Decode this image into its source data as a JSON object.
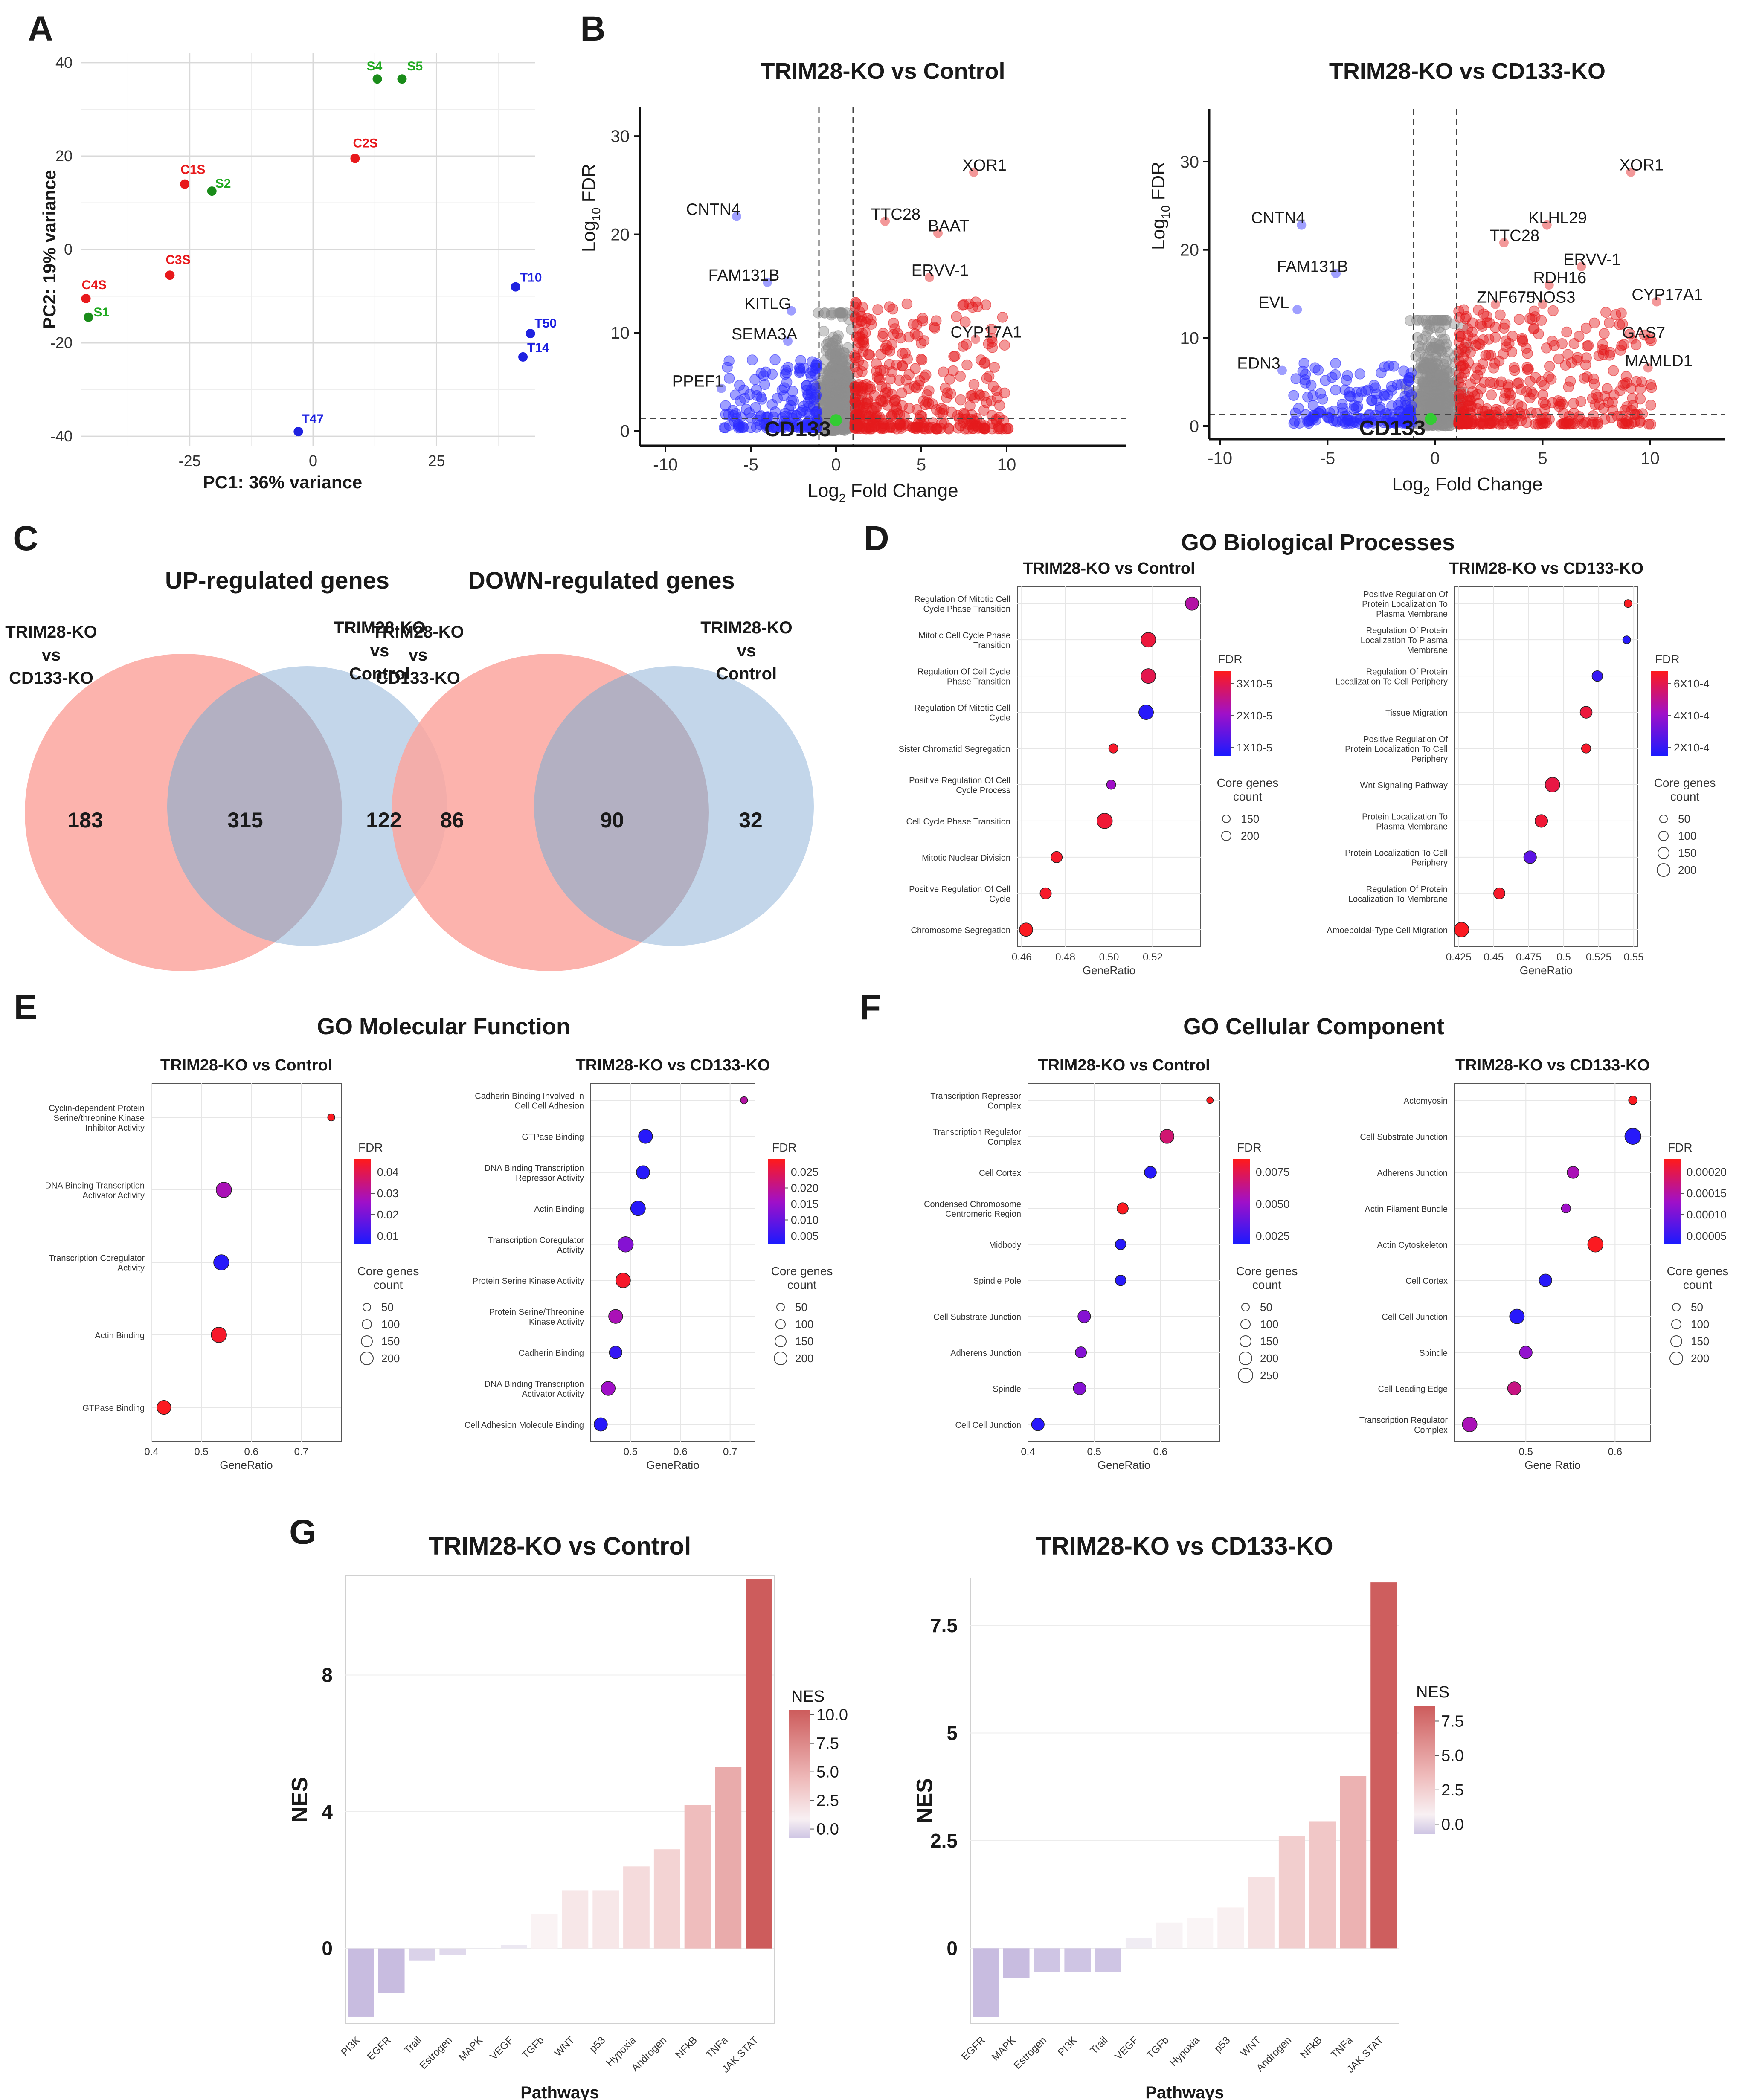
{
  "figure": {
    "panel_letters": [
      "A",
      "B",
      "C",
      "D",
      "E",
      "F",
      "G"
    ]
  },
  "chart_data": [
    {
      "id": "A",
      "type": "scatter",
      "title": "",
      "xlabel": "PC1: 36% variance",
      "ylabel": "PC2: 19% variance",
      "xlim": [
        -47,
        45
      ],
      "ylim": [
        -42,
        42
      ],
      "xticks": [
        -25,
        0,
        25
      ],
      "yticks": [
        -40,
        -20,
        0,
        20,
        40
      ],
      "colors": {
        "C": "#e8191c",
        "S": "#1a8c1a",
        "T": "#1f22e0"
      },
      "label_colors": {
        "C": "#e8191c",
        "S": "#22aa22",
        "T": "#1f22e0"
      },
      "points": [
        {
          "label": "S4",
          "x": 13,
          "y": 36.5,
          "group": "S"
        },
        {
          "label": "S5",
          "x": 18,
          "y": 36.5,
          "group": "S"
        },
        {
          "label": "C2S",
          "x": 8.5,
          "y": 19.5,
          "group": "C"
        },
        {
          "label": "C1S",
          "x": -26,
          "y": 14,
          "group": "C"
        },
        {
          "label": "S2",
          "x": -20.5,
          "y": 12.5,
          "group": "S"
        },
        {
          "label": "C3S",
          "x": -29,
          "y": -5.5,
          "group": "C"
        },
        {
          "label": "C4S",
          "x": -46,
          "y": -10.5,
          "group": "C"
        },
        {
          "label": "S1",
          "x": -45.5,
          "y": -14.5,
          "group": "S"
        },
        {
          "label": "T10",
          "x": 41,
          "y": -8,
          "group": "T"
        },
        {
          "label": "T50",
          "x": 44,
          "y": -18,
          "group": "T"
        },
        {
          "label": "T14",
          "x": 42.5,
          "y": -23,
          "group": "T"
        },
        {
          "label": "T47",
          "x": -3,
          "y": -39,
          "group": "T"
        }
      ]
    },
    {
      "id": "B1",
      "type": "scatter",
      "title": "TRIM28-KO vs Control",
      "xlabel": "Log2 Fold Change",
      "ylabel": "Log10 FDR",
      "xlim": [
        -11.5,
        17
      ],
      "ylim": [
        -1.5,
        33
      ],
      "xticks": [
        -10,
        -5,
        0,
        5,
        10
      ],
      "yticks": [
        0,
        10,
        20,
        30
      ],
      "vlines": [
        -1,
        1
      ],
      "hline": 1.3,
      "labels": [
        {
          "text": "XOR1",
          "x": 8.7,
          "y": 26.5
        },
        {
          "text": "CNTN4",
          "x": -7.2,
          "y": 22
        },
        {
          "text": "TTC28",
          "x": 3.5,
          "y": 21.5
        },
        {
          "text": "BAAT",
          "x": 6.6,
          "y": 20.3
        },
        {
          "text": "FAM131B",
          "x": -5.4,
          "y": 15.3
        },
        {
          "text": "ERVV-1",
          "x": 6.1,
          "y": 15.8
        },
        {
          "text": "KITLG",
          "x": -4,
          "y": 12.4
        },
        {
          "text": "SEMA3A",
          "x": -4.2,
          "y": 9.3
        },
        {
          "text": "CYP17A1",
          "x": 8.8,
          "y": 9.5
        },
        {
          "text": "PPEF1",
          "x": -8.1,
          "y": 4.5
        }
      ],
      "highlight": {
        "text": "CD133",
        "x": 0,
        "y": 1.1
      }
    },
    {
      "id": "B2",
      "type": "scatter",
      "title": "TRIM28-KO vs CD133-KO",
      "xlabel": "Log2 Fold Change",
      "ylabel": "Log10 FDR",
      "xlim": [
        -10.5,
        13.5
      ],
      "ylim": [
        -1.5,
        36
      ],
      "xticks": [
        -10,
        -5,
        0,
        5,
        10
      ],
      "yticks": [
        0,
        10,
        20,
        30
      ],
      "vlines": [
        -1,
        1
      ],
      "hline": 1.3,
      "labels": [
        {
          "text": "XOR1",
          "x": 9.6,
          "y": 29
        },
        {
          "text": "CNTN4",
          "x": -7.3,
          "y": 23
        },
        {
          "text": "KLHL29",
          "x": 5.7,
          "y": 23
        },
        {
          "text": "TTC28",
          "x": 3.7,
          "y": 21
        },
        {
          "text": "ERVV-1",
          "x": 7.3,
          "y": 18.3
        },
        {
          "text": "FAM131B",
          "x": -5.7,
          "y": 17.5
        },
        {
          "text": "RDH16",
          "x": 5.8,
          "y": 16.2
        },
        {
          "text": "ZNF675",
          "x": 3.3,
          "y": 14
        },
        {
          "text": "NOS3",
          "x": 5.5,
          "y": 14
        },
        {
          "text": "CYP17A1",
          "x": 10.8,
          "y": 14.3
        },
        {
          "text": "EVL",
          "x": -7.5,
          "y": 13.4
        },
        {
          "text": "GAS7",
          "x": 9.7,
          "y": 10
        },
        {
          "text": "EDN3",
          "x": -8.2,
          "y": 6.5
        },
        {
          "text": "MAMLD1",
          "x": 10.4,
          "y": 6.8
        }
      ],
      "highlight": {
        "text": "CD133",
        "x": -0.2,
        "y": 0.8
      }
    },
    {
      "id": "C1",
      "type": "venn",
      "title": "UP-regulated genes",
      "sets": [
        "TRIM28-KO\nvs\nCD133-KO",
        "TRIM28-KO\nvs\nControl"
      ],
      "values": {
        "left_only": 183,
        "both": 315,
        "right_only": 122
      }
    },
    {
      "id": "C2",
      "type": "venn",
      "title": "DOWN-regulated genes",
      "sets": [
        "TRIM28-KO\nvs\nCD133-KO",
        "TRIM28-KO\nvs\nControl"
      ],
      "values": {
        "left_only": 86,
        "both": 90,
        "right_only": 32
      }
    },
    {
      "id": "D1",
      "type": "scatter",
      "group_title": "GO Biological Processes",
      "title": "TRIM28-KO vs Control",
      "xlabel": "GeneRatio",
      "xlim": [
        0.458,
        0.542
      ],
      "xticks": [
        0.46,
        0.48,
        0.5,
        0.52
      ],
      "tick_labels": [
        "0.46",
        "0.48",
        "0.50",
        "0.52"
      ],
      "terms": [
        "Regulation Of Mitotic Cell\nCycle Phase Transition",
        "Mitotic Cell Cycle Phase\nTransition",
        "Regulation Of Cell Cycle\nPhase Transition",
        "Regulation Of Mitotic Cell\nCycle",
        "Sister Chromatid Segregation",
        "Positive Regulation Of Cell\nCycle Process",
        "Cell Cycle Phase Transition",
        "Mitotic Nuclear Division",
        "Positive Regulation Of Cell\nCycle",
        "Chromosome Segregation"
      ],
      "gene_ratio": [
        0.538,
        0.518,
        0.518,
        0.517,
        0.502,
        0.501,
        0.498,
        0.476,
        0.471,
        0.462
      ],
      "fdr_color": [
        0.6,
        0.9,
        0.85,
        0.05,
        0.95,
        0.5,
        0.92,
        0.95,
        0.95,
        0.98
      ],
      "size": [
        0.6,
        0.7,
        0.7,
        0.7,
        0.3,
        0.3,
        0.75,
        0.45,
        0.45,
        0.6
      ],
      "legend": {
        "title": "FDR",
        "labels": [
          "3X10-5",
          "2X10-5",
          "1X10-5"
        ],
        "size_title": "Core genes\ncount",
        "size_labels": [
          "150",
          "200"
        ]
      }
    },
    {
      "id": "D2",
      "type": "scatter",
      "title": "TRIM28-KO vs CD133-KO",
      "xlabel": "GeneRatio",
      "xlim": [
        0.422,
        0.553
      ],
      "xticks": [
        0.425,
        0.45,
        0.475,
        0.5,
        0.525,
        0.55
      ],
      "tick_labels": [
        "0.425",
        "0.45",
        "0.475",
        "0.5",
        "0.525",
        "0.55"
      ],
      "terms": [
        "Positive Regulation Of\nProtein Localization To\nPlasma Membrane",
        "Regulation Of Protein\nLocalization To Plasma\nMembrane",
        "Regulation Of Protein\nLocalization To Cell Periphery",
        "Tissue Migration",
        "Positive Regulation Of\nProtein Localization To Cell\nPeriphery",
        "Wnt Signaling Pathway",
        "Protein Localization To\nPlasma Membrane",
        "Protein Localization To Cell\nPeriphery",
        "Regulation Of Protein\nLocalization To Membrane",
        "Amoeboidal-Type Cell Migration"
      ],
      "gene_ratio": [
        0.546,
        0.545,
        0.524,
        0.516,
        0.516,
        0.492,
        0.484,
        0.476,
        0.454,
        0.427
      ],
      "fdr_color": [
        0.98,
        0.05,
        0.1,
        0.9,
        0.95,
        0.88,
        0.92,
        0.25,
        0.95,
        0.98
      ],
      "size": [
        0.2,
        0.2,
        0.4,
        0.5,
        0.3,
        0.7,
        0.55,
        0.55,
        0.45,
        0.7
      ],
      "legend": {
        "title": "FDR",
        "labels": [
          "6X10-4",
          "4X10-4",
          "2X10-4"
        ],
        "size_title": "Core genes\ncount",
        "size_labels": [
          "50",
          "100",
          "150",
          "200"
        ]
      }
    },
    {
      "id": "E1",
      "type": "scatter",
      "group_title": "GO Molecular Function",
      "title": "TRIM28-KO vs Control",
      "xlabel": "GeneRatio",
      "xlim": [
        0.4,
        0.78
      ],
      "xticks": [
        0.4,
        0.5,
        0.6,
        0.7
      ],
      "tick_labels": [
        "0.4",
        "0.5",
        "0.6",
        "0.7"
      ],
      "terms": [
        "Cyclin-dependent Protein\nSerine/threonine Kinase\nInhibitor Activity",
        "DNA Binding Transcription\nActivator Activity",
        "Transcription Coregulator\nActivity",
        "Actin Binding",
        "GTPase Binding"
      ],
      "gene_ratio": [
        0.76,
        0.545,
        0.54,
        0.535,
        0.425
      ],
      "fdr_color": [
        0.98,
        0.55,
        0.05,
        0.95,
        0.98
      ],
      "size": [
        0.15,
        0.75,
        0.75,
        0.75,
        0.65
      ],
      "legend": {
        "title": "FDR",
        "labels": [
          "0.04",
          "0.03",
          "0.02",
          "0.01"
        ],
        "size_title": "Core genes\ncount",
        "size_labels": [
          "50",
          "100",
          "150",
          "200"
        ]
      }
    },
    {
      "id": "E2",
      "type": "scatter",
      "title": "TRIM28-KO vs CD133-KO",
      "xlabel": "GeneRatio",
      "xlim": [
        0.42,
        0.75
      ],
      "xticks": [
        0.5,
        0.6,
        0.7
      ],
      "tick_labels": [
        "0.5",
        "0.6",
        "0.7"
      ],
      "terms": [
        "Cadherin Binding Involved In\nCell Cell Adhesion",
        "GTPase Binding",
        "DNA Binding Transcription\nRepressor Activity",
        "Actin Binding",
        "Transcription Coregulator\nActivity",
        "Protein Serine Kinase Activity",
        "Protein Serine/Threonine\nKinase Activity",
        "Cadherin Binding",
        "DNA Binding Transcription\nActivator Activity",
        "Cell Adhesion Molecule Binding"
      ],
      "gene_ratio": [
        0.728,
        0.53,
        0.525,
        0.515,
        0.49,
        0.485,
        0.47,
        0.47,
        0.455,
        0.44
      ],
      "fdr_color": [
        0.6,
        0.05,
        0.05,
        0.05,
        0.4,
        0.95,
        0.55,
        0.1,
        0.5,
        0.05
      ],
      "size": [
        0.15,
        0.65,
        0.6,
        0.7,
        0.75,
        0.7,
        0.65,
        0.55,
        0.65,
        0.6
      ],
      "legend": {
        "title": "FDR",
        "labels": [
          "0.025",
          "0.020",
          "0.015",
          "0.010",
          "0.005"
        ],
        "size_title": "Core genes\ncount",
        "size_labels": [
          "50",
          "100",
          "150",
          "200"
        ]
      }
    },
    {
      "id": "F1",
      "type": "scatter",
      "group_title": "GO Cellular Component",
      "title": "TRIM28-KO vs Control",
      "xlabel": "GeneRatio",
      "xlim": [
        0.4,
        0.69
      ],
      "xticks": [
        0.4,
        0.5,
        0.6
      ],
      "tick_labels": [
        "0.4",
        "0.5",
        "0.6"
      ],
      "terms": [
        "Transcription Repressor\nComplex",
        "Transcription Regulator\nComplex",
        "Cell Cortex",
        "Condensed Chromosome\nCentromeric Region",
        "Midbody",
        "Spindle Pole",
        "Cell Substrate Junction",
        "Adherens Junction",
        "Spindle",
        "Cell Cell Junction"
      ],
      "gene_ratio": [
        0.675,
        0.61,
        0.585,
        0.543,
        0.54,
        0.54,
        0.485,
        0.48,
        0.478,
        0.415
      ],
      "fdr_color": [
        0.98,
        0.75,
        0.05,
        0.98,
        0.05,
        0.05,
        0.4,
        0.4,
        0.4,
        0.05
      ],
      "size": [
        0.1,
        0.65,
        0.5,
        0.45,
        0.4,
        0.4,
        0.55,
        0.45,
        0.55,
        0.55
      ],
      "legend": {
        "title": "FDR",
        "labels": [
          "0.0075",
          "0.0050",
          "0.0025"
        ],
        "size_title": "Core genes\ncount",
        "size_labels": [
          "50",
          "100",
          "150",
          "200",
          "250"
        ]
      }
    },
    {
      "id": "F2",
      "type": "scatter",
      "title": "TRIM28-KO vs CD133-KO",
      "xlabel": "Gene Ratio",
      "xlim": [
        0.42,
        0.64
      ],
      "xticks": [
        0.5,
        0.6
      ],
      "tick_labels": [
        "0.5",
        "0.6"
      ],
      "terms": [
        "Actomyosin",
        "Cell Substrate Junction",
        "Adherens Junction",
        "Actin Filament Bundle",
        "Actin Cytoskeleton",
        "Cell Cortex",
        "Cell Cell Junction",
        "Spindle",
        "Cell Leading Edge",
        "Transcription Regulator\nComplex"
      ],
      "gene_ratio": [
        0.62,
        0.62,
        0.553,
        0.545,
        0.578,
        0.522,
        0.49,
        0.5,
        0.487,
        0.437
      ],
      "fdr_color": [
        0.98,
        0.05,
        0.55,
        0.5,
        0.98,
        0.05,
        0.05,
        0.45,
        0.7,
        0.55
      ],
      "size": [
        0.25,
        0.8,
        0.5,
        0.3,
        0.75,
        0.55,
        0.7,
        0.55,
        0.6,
        0.7
      ],
      "legend": {
        "title": "FDR",
        "labels": [
          "0.00020",
          "0.00015",
          "0.00010",
          "0.00005"
        ],
        "size_title": "Core genes\ncount",
        "size_labels": [
          "50",
          "100",
          "150",
          "200"
        ]
      }
    },
    {
      "id": "G1",
      "type": "bar",
      "title": "TRIM28-KO vs Control",
      "xlabel": "Pathways",
      "ylabel": "NES",
      "ylim": [
        -2.2,
        10.9
      ],
      "yticks": [
        0,
        4,
        8
      ],
      "categories": [
        "PI3K",
        "EGFR",
        "Trail",
        "Estrogen",
        "MAPK",
        "VEGF",
        "TGFb",
        "WNT",
        "p53",
        "Hypoxia",
        "Androgen",
        "NFkB",
        "TNFa",
        "JAK.STAT"
      ],
      "values": [
        -2.0,
        -1.3,
        -0.35,
        -0.2,
        0.0,
        0.1,
        1.0,
        1.7,
        1.7,
        2.4,
        2.9,
        4.2,
        5.3,
        10.8
      ],
      "legend": {
        "title": "NES",
        "min": -0.8,
        "max": 10.4,
        "labels": [
          "10.0",
          "7.5",
          "5.0",
          "2.5",
          "0.0"
        ],
        "values": [
          10,
          7.5,
          5,
          2.5,
          0
        ]
      }
    },
    {
      "id": "G2",
      "type": "bar",
      "title": "TRIM28-KO vs CD133-KO",
      "xlabel": "Pathways",
      "ylabel": "NES",
      "ylim": [
        -1.75,
        8.6
      ],
      "yticks": [
        0,
        2.5,
        5,
        7.5
      ],
      "tick_labels": [
        "0",
        "2.5",
        "5",
        "7.5"
      ],
      "categories": [
        "EGFR",
        "MAPK",
        "Estrogen",
        "PI3K",
        "Trail",
        "VEGF",
        "TGFb",
        "Hypoxia",
        "p53",
        "WNT",
        "Androgen",
        "NFkB",
        "TNFa",
        "JAK.STAT"
      ],
      "values": [
        -1.6,
        -0.7,
        -0.55,
        -0.55,
        -0.55,
        0.25,
        0.6,
        0.7,
        0.95,
        1.65,
        2.6,
        2.95,
        4.0,
        8.5
      ],
      "legend": {
        "title": "NES",
        "min": -0.7,
        "max": 8.6,
        "labels": [
          "7.5",
          "5.0",
          "2.5",
          "0.0"
        ],
        "values": [
          7.5,
          5,
          2.5,
          0
        ]
      }
    }
  ]
}
